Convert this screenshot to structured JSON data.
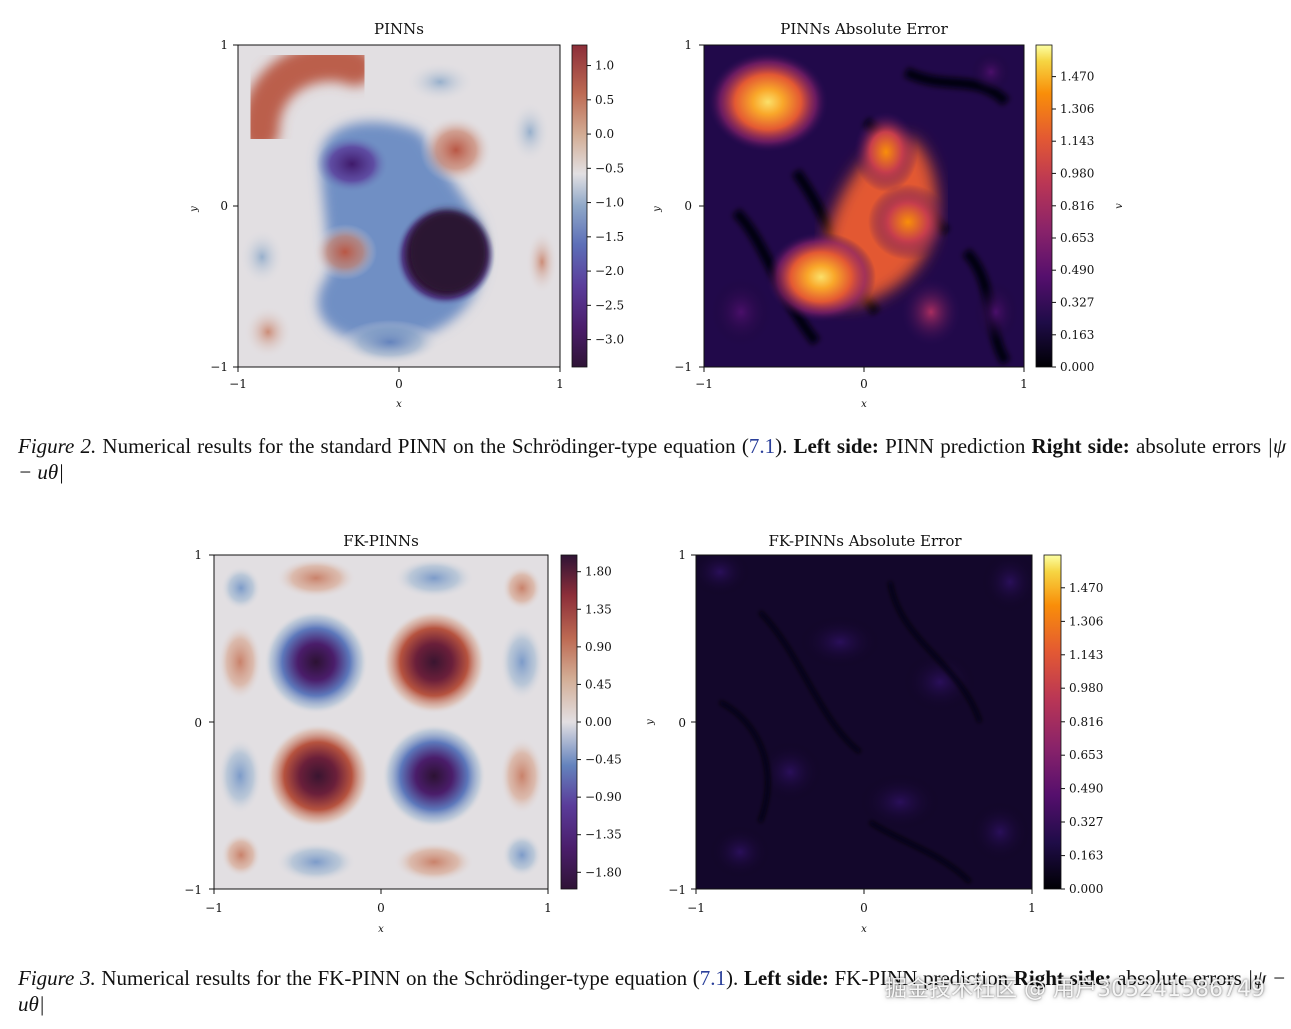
{
  "figures": [
    {
      "panels": [
        {
          "title": "PINNs",
          "xlabel": "x",
          "ylabel": "y",
          "xticks": [
            "−1",
            "0",
            "1"
          ],
          "yticks": [
            "−1",
            "0",
            "1"
          ],
          "colormap": "twilight_shifted",
          "colorbar": {
            "label": "",
            "ticks": [
              "1.0",
              "0.5",
              "0.0",
              "−0.5",
              "−1.0",
              "−1.5",
              "−2.0",
              "−2.5",
              "−3.0"
            ],
            "range": [
              -3.4,
              1.3
            ]
          }
        },
        {
          "title": "PINNs Absolute Error",
          "xlabel": "x",
          "ylabel": "y",
          "xticks": [
            "−1",
            "0",
            "1"
          ],
          "yticks": [
            "−1",
            "0",
            "1"
          ],
          "colormap": "inferno",
          "colorbar": {
            "label": "v",
            "ticks": [
              "1.470",
              "1.306",
              "1.143",
              "0.980",
              "0.816",
              "0.653",
              "0.490",
              "0.327",
              "0.163",
              "0.000"
            ],
            "range": [
              0,
              1.63
            ]
          }
        }
      ],
      "caption": {
        "fig_label": "Figure 2.",
        "text1": "Numerical results for the standard PINN on the Schrödinger-type equation (",
        "ref": "7.1",
        "text2": ").",
        "left_label": "Left side:",
        "left_text": "PINN prediction",
        "right_label": "Right side:",
        "right_text": "absolute errors",
        "math": "|ψ − uθ|"
      }
    },
    {
      "panels": [
        {
          "title": "FK-PINNs",
          "xlabel": "x",
          "ylabel": "",
          "xticks": [
            "−1",
            "0",
            "1"
          ],
          "yticks": [
            "−1",
            "0",
            "1"
          ],
          "colormap": "twilight_shifted",
          "colorbar": {
            "label": "",
            "ticks": [
              "1.80",
              "1.35",
              "0.90",
              "0.45",
              "0.00",
              "−0.45",
              "−0.90",
              "−1.35",
              "−1.80"
            ],
            "range": [
              -2.0,
              2.0
            ]
          }
        },
        {
          "title": "FK-PINNs Absolute Error",
          "xlabel": "x",
          "ylabel": "y",
          "xticks": [
            "−1",
            "0",
            "1"
          ],
          "yticks": [
            "−1",
            "0",
            "1"
          ],
          "colormap": "inferno",
          "colorbar": {
            "label": "",
            "ticks": [
              "1.470",
              "1.306",
              "1.143",
              "0.980",
              "0.816",
              "0.653",
              "0.490",
              "0.327",
              "0.163",
              "0.000"
            ],
            "range": [
              0,
              1.63
            ]
          }
        }
      ],
      "caption": {
        "fig_label": "Figure 3.",
        "text1": "Numerical results for the FK-PINN on the Schrödinger-type equation (",
        "ref": "7.1",
        "text2": ").",
        "left_label": "Left side:",
        "left_text": "FK-PINN prediction",
        "right_label": "Right side:",
        "right_text": "absolute errors",
        "math": "|ψ − uθ|"
      }
    }
  ],
  "watermark": "掘金技术社区 @ 用户305241586749"
}
